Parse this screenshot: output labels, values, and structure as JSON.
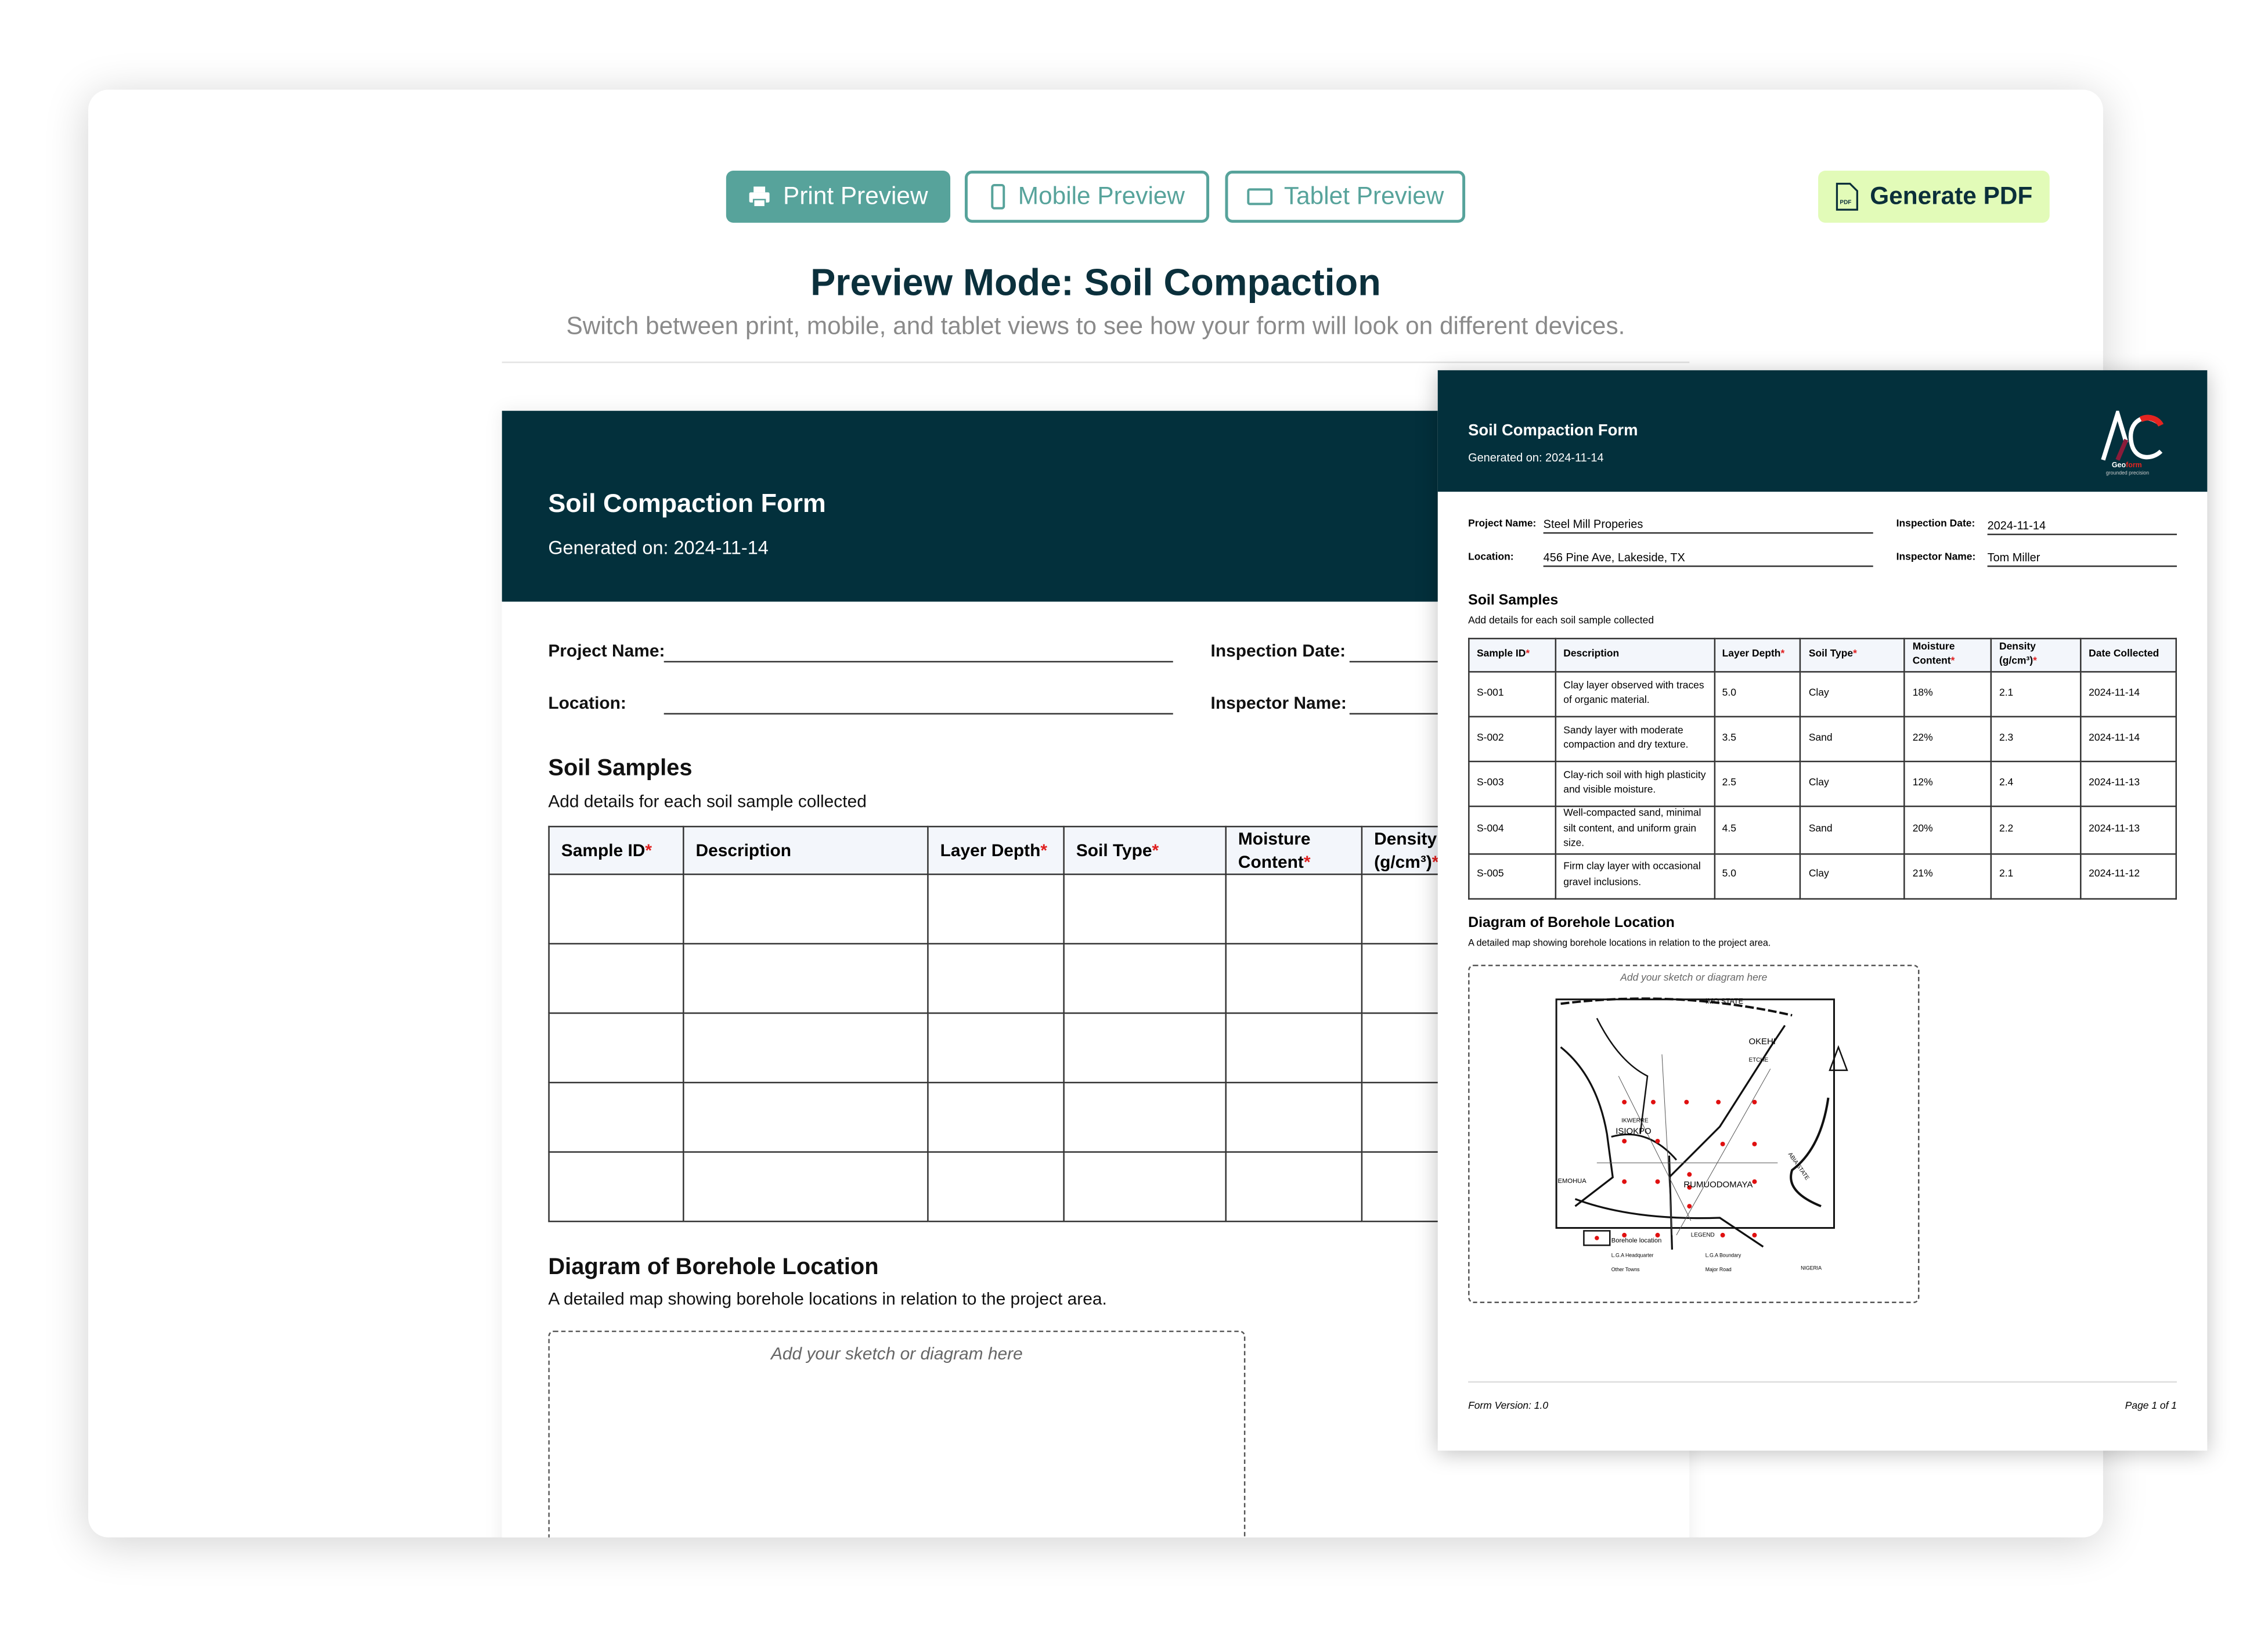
{
  "toolbar": {
    "print": "Print Preview",
    "mobile": "Mobile Preview",
    "tablet": "Tablet Preview",
    "pdf": "Generate PDF",
    "pdf_icon_text": "PDF",
    "icons": {
      "print": "printer-icon",
      "mobile": "phone-icon",
      "tablet": "tablet-icon",
      "pdf": "pdf-file-icon"
    }
  },
  "colors": {
    "accent": "#57a39b",
    "header": "#03303c",
    "pdf_bg": "#e2fbb8",
    "required": "#e02020"
  },
  "page": {
    "title": "Preview Mode: Soil Compaction",
    "subtitle": "Switch between print, mobile, and tablet views to see how your form will look on different devices."
  },
  "form": {
    "title": "Soil Compaction Form",
    "generated": "Generated on: 2024-11-14",
    "labels": {
      "project": "Project Name:",
      "inspection_date": "Inspection Date:",
      "location": "Location:",
      "inspector": "Inspector Name:"
    },
    "values": {
      "project": "Steel Mill Properies",
      "inspection_date": "2024-11-14",
      "location": "456 Pine Ave, Lakeside, TX",
      "inspector": "Tom Miller"
    },
    "samples_title": "Soil Samples",
    "samples_sub": "Add details for each soil sample collected",
    "columns": [
      {
        "label": "Sample ID",
        "req": true
      },
      {
        "label": "Description",
        "req": false
      },
      {
        "label": "Layer Depth",
        "req": true
      },
      {
        "label": "Soil Type",
        "req": true
      },
      {
        "label": "Moisture Content",
        "req": true
      },
      {
        "label": "Density (g/cm³)",
        "req": true
      },
      {
        "label": "Date Collected",
        "req": false
      }
    ],
    "rows": [
      [
        "S-001",
        "Clay layer observed with traces of organic material.",
        "5.0",
        "Clay",
        "18%",
        "2.1",
        "2024-11-14"
      ],
      [
        "S-002",
        "Sandy layer with moderate compaction and dry texture.",
        "3.5",
        "Sand",
        "22%",
        "2.3",
        "2024-11-14"
      ],
      [
        "S-003",
        "Clay-rich soil with high plasticity and visible moisture.",
        "2.5",
        "Clay",
        "12%",
        "2.4",
        "2024-11-13"
      ],
      [
        "S-004",
        "Well-compacted sand, minimal silt content, and uniform grain size.",
        "4.5",
        "Sand",
        "20%",
        "2.2",
        "2024-11-13"
      ],
      [
        "S-005",
        "Firm clay layer with occasional gravel inclusions.",
        "5.0",
        "Clay",
        "21%",
        "2.1",
        "2024-11-12"
      ]
    ],
    "diagram_title": "Diagram of Borehole Location",
    "diagram_sub": "A detailed map showing borehole locations in relation to the project area.",
    "sketch_hint": "Add your sketch or diagram here",
    "footer_version": "Form Version: 1.0",
    "footer_page": "Page 1 of 1",
    "logo": {
      "name": "Geoform",
      "tagline": "grounded precision"
    }
  },
  "map_labels": [
    "IMO STATE",
    "OKEHI",
    "ETCHE",
    "IKWERRE",
    "ISIOKPO",
    "EMOHUA",
    "RUMUODOMAYA",
    "ABIA STATE",
    "LEGEND",
    "Borehole location",
    "L.G.A Headquarter",
    "Other Towns",
    "L.G.A Boundary",
    "Major Road",
    "NIGERIA"
  ]
}
